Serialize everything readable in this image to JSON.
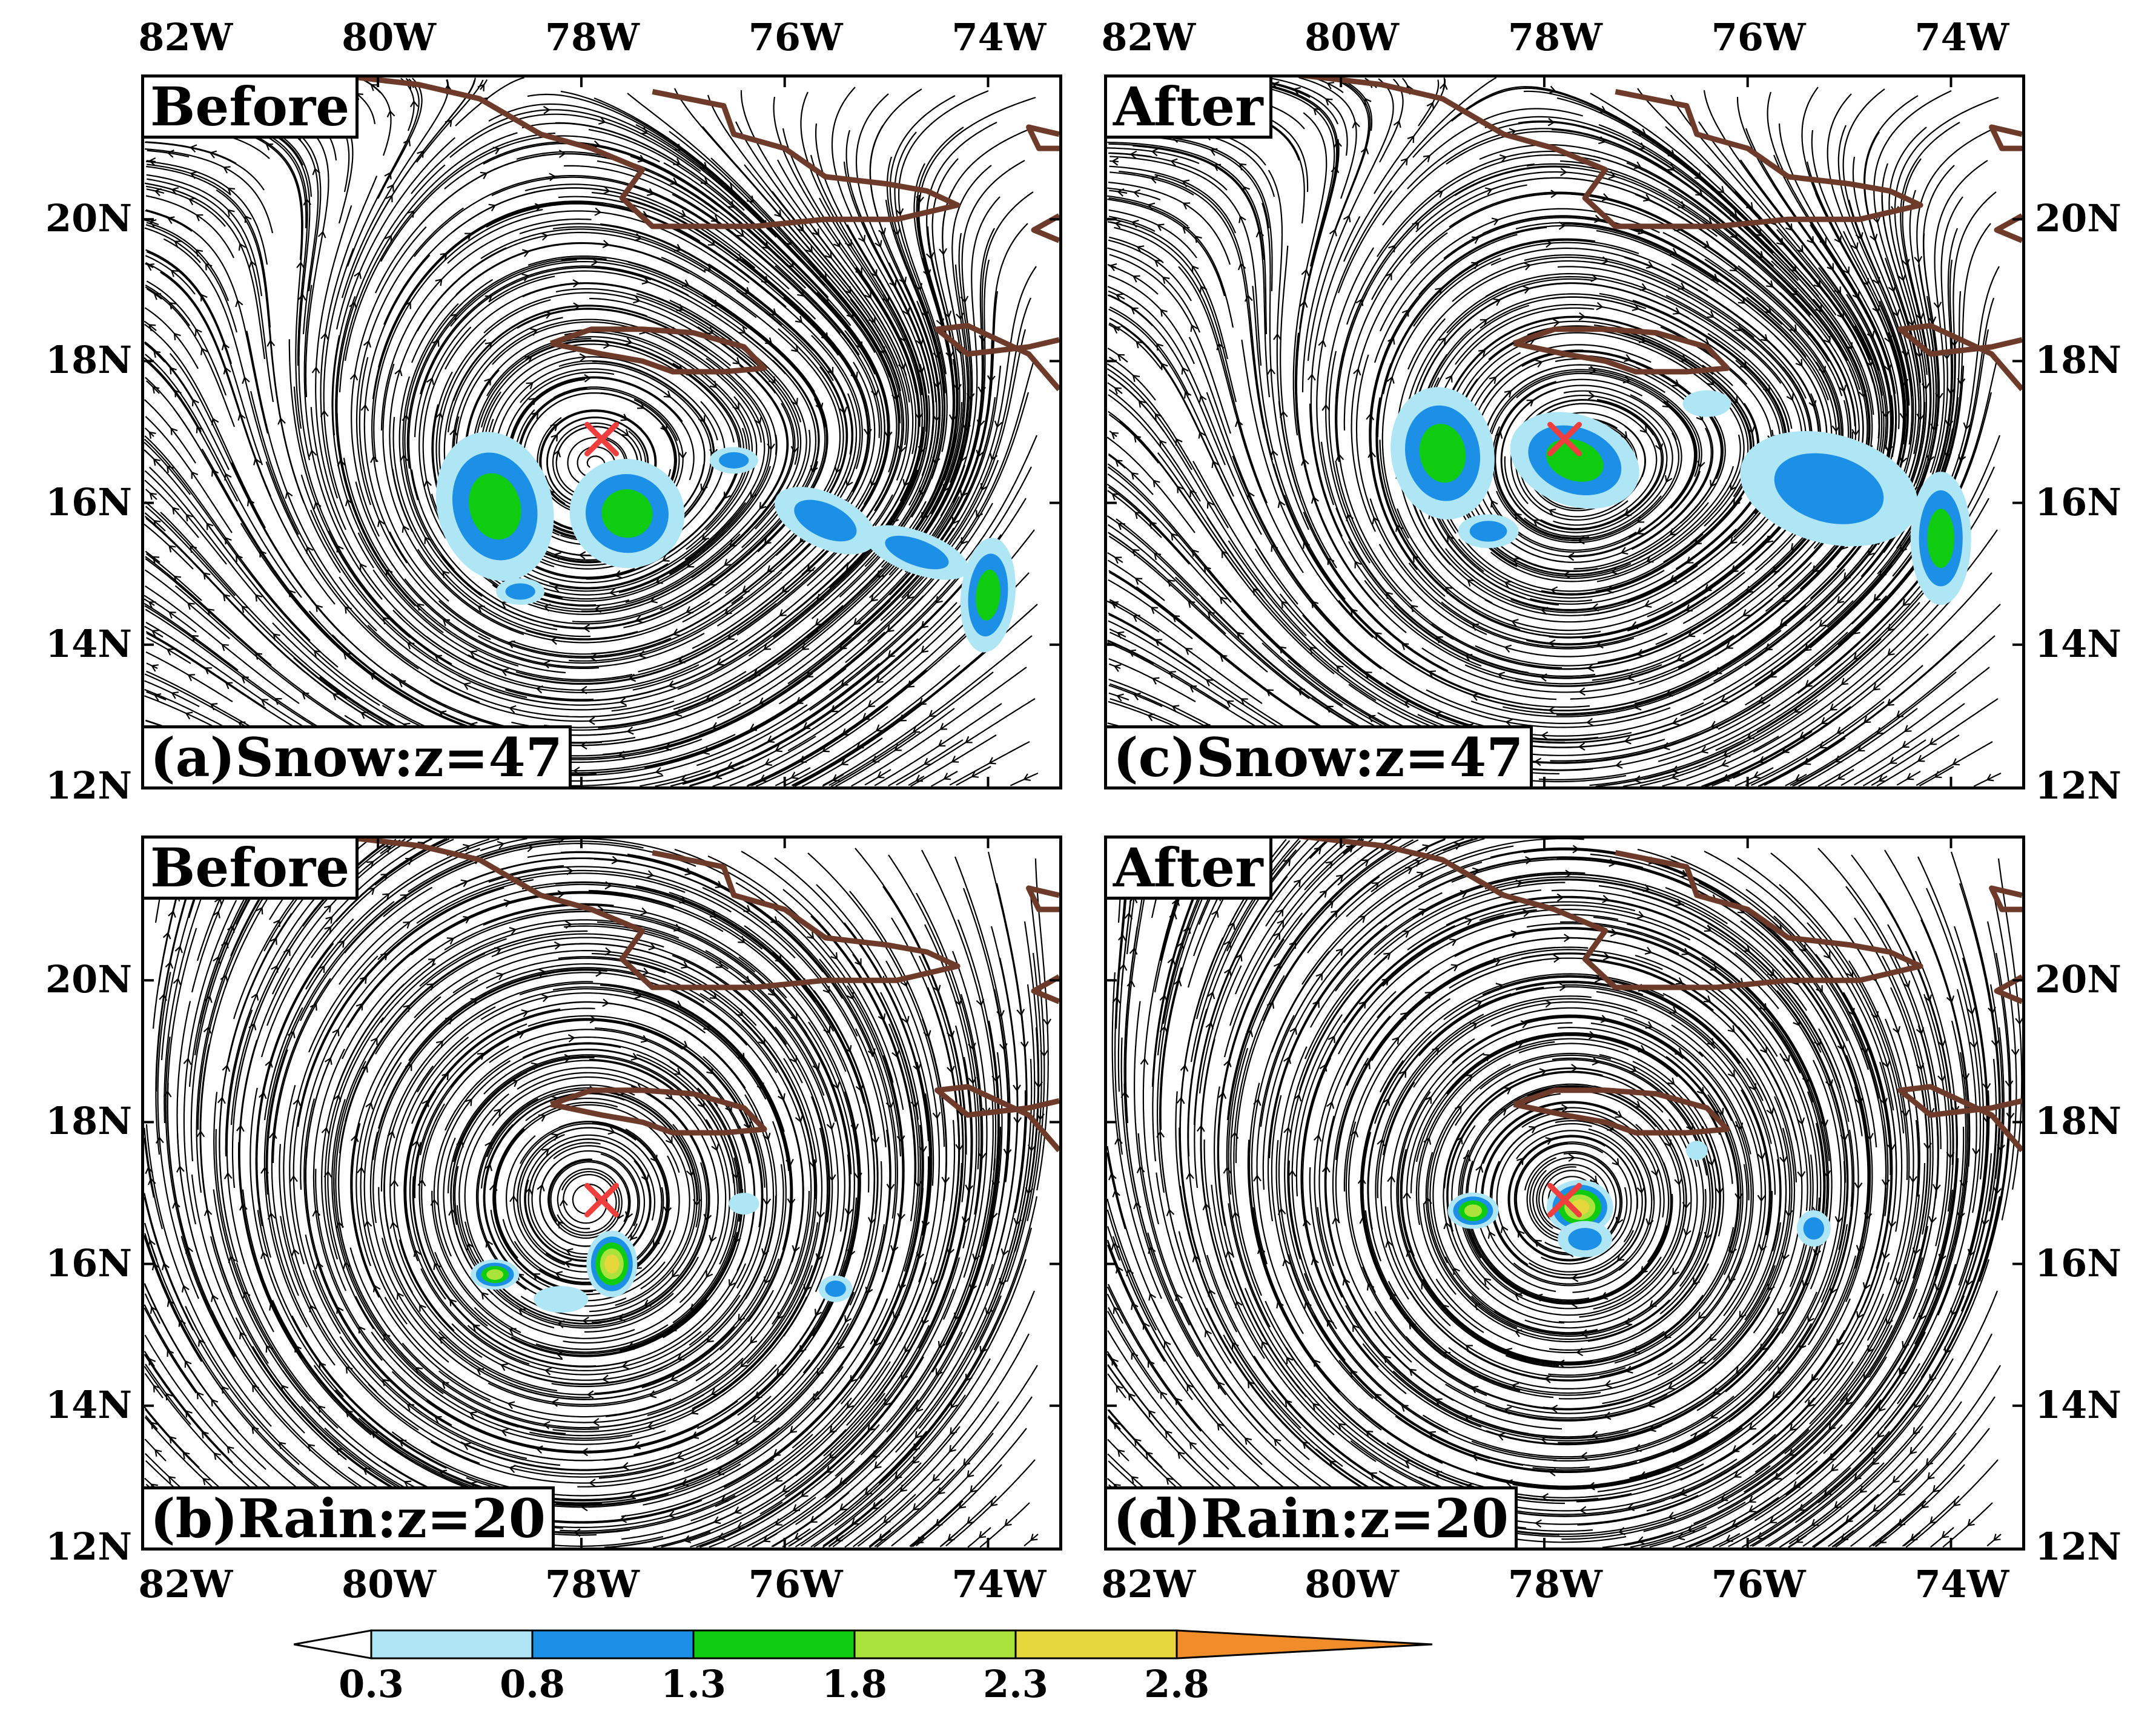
{
  "panels": [
    {
      "id": "a",
      "header": "Before",
      "label": "(a)Snow:z=47",
      "field": "snow",
      "after": false
    },
    {
      "id": "c",
      "header": "After",
      "label": "(c)Snow:z=47",
      "field": "snow",
      "after": true
    },
    {
      "id": "b",
      "header": "Before",
      "label": "(b)Rain:z=20",
      "field": "rain",
      "after": false
    },
    {
      "id": "d",
      "header": "After",
      "label": "(d)Rain:z=20",
      "field": "rain",
      "after": true
    }
  ],
  "axes": {
    "lon_labels": [
      "82W",
      "80W",
      "78W",
      "76W",
      "74W"
    ],
    "lat_labels": [
      "20N",
      "18N",
      "16N",
      "14N",
      "12N"
    ],
    "lon_range": [
      -82.3,
      -73.3
    ],
    "lat_range": [
      12,
      22
    ]
  },
  "marker": {
    "lon": -77.8,
    "lat": 16.9,
    "symbol": "×",
    "color": "#ef3e3e"
  },
  "colorbar": {
    "levels": [
      "0.3",
      "0.8",
      "1.3",
      "1.8",
      "2.3",
      "2.8"
    ],
    "colors": [
      "#ffffff",
      "#aee6f6",
      "#1c8fe6",
      "#10cc10",
      "#a9e33c",
      "#e6d83c",
      "#f08c2a"
    ]
  },
  "coastline_color": "#6e3b2a"
}
